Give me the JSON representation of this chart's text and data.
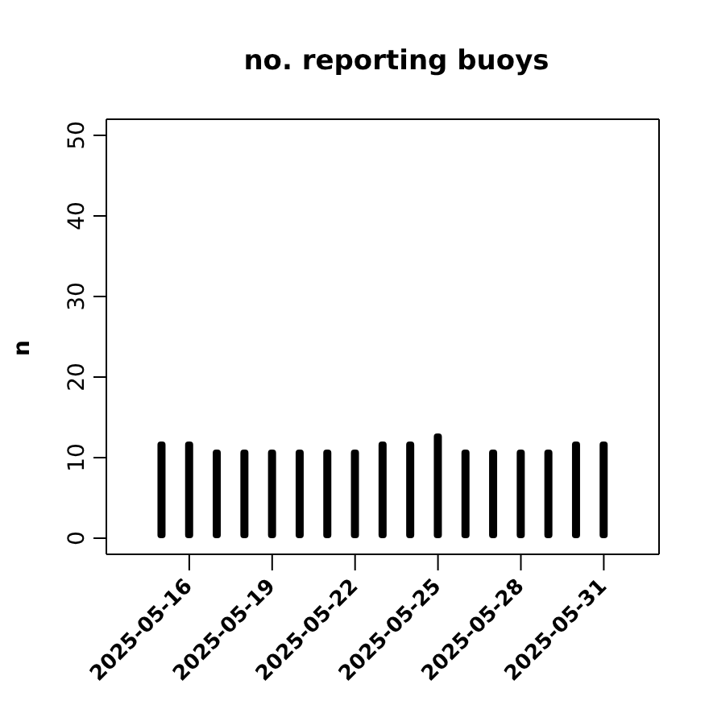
{
  "chart_data": {
    "type": "bar",
    "title": "no. reporting buoys",
    "ylabel": "n",
    "x": [
      "2025-05-15",
      "2025-05-16",
      "2025-05-17",
      "2025-05-18",
      "2025-05-19",
      "2025-05-20",
      "2025-05-21",
      "2025-05-22",
      "2025-05-23",
      "2025-05-24",
      "2025-05-25",
      "2025-05-26",
      "2025-05-27",
      "2025-05-28",
      "2025-05-29",
      "2025-05-30",
      "2025-05-31"
    ],
    "values": [
      12,
      12,
      11,
      11,
      11,
      11,
      11,
      11,
      12,
      12,
      13,
      11,
      11,
      11,
      11,
      12,
      12
    ],
    "color": "#000000",
    "xlim": [
      "2025-05-13",
      "2025-06-02"
    ],
    "xticks": [
      "2025-05-16",
      "2025-05-19",
      "2025-05-22",
      "2025-05-25",
      "2025-05-28",
      "2025-05-31"
    ],
    "ylim": [
      -2,
      52
    ],
    "yticks": [
      0,
      10,
      20,
      30,
      40,
      50
    ],
    "grid": false,
    "legend": false
  }
}
